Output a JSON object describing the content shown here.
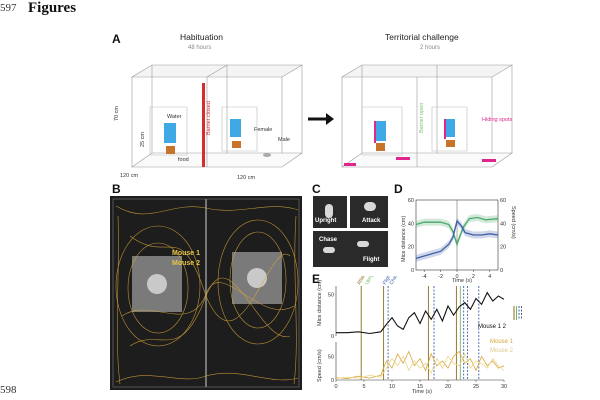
{
  "line_numbers": {
    "top": "597",
    "bottom": "598"
  },
  "heading": "Figures",
  "panel_a": {
    "label": "A",
    "habituation_title": "Habituation",
    "habituation_duration": "48 hours",
    "challenge_title": "Territorial challenge",
    "challenge_duration": "2 hours",
    "labels": {
      "water": "Water",
      "food": "food",
      "barrier_closed": "Barrier closed",
      "barrier_open": "Barrier open",
      "female": "Female",
      "male": "Male",
      "hiding_spots": "Hiding spots",
      "dim_height": "70 cm",
      "dim_depth": "120 cm",
      "dim_width": "120 cm",
      "dim_box": "25 cm"
    },
    "colors": {
      "water": "#3fa9e6",
      "food": "#c8732a",
      "barrier_closed": "#d62e2e",
      "barrier_open": "#7bc46e",
      "hiding": "#e0268c"
    }
  },
  "panel_b": {
    "label": "B",
    "legend": [
      "Mouse 1",
      "Mouse 2"
    ],
    "legend_color": "#e7c548",
    "track_color": "#d9a73a"
  },
  "panel_c": {
    "label": "C",
    "behaviors": [
      "Upright",
      "Attack",
      "Chase",
      "Flight"
    ]
  },
  "panel_d": {
    "label": "D",
    "chart_data": {
      "type": "line",
      "xlabel": "Time (s)",
      "ylabel_left": "Mice distance (cm)",
      "ylabel_right": "Speed (cm/s)",
      "x_ticks": [
        -4,
        -2,
        0,
        2,
        4
      ],
      "yleft_ticks": [
        0,
        20,
        40,
        60
      ],
      "yright_ticks": [
        0,
        20,
        40,
        60
      ],
      "xlim": [
        -5,
        5
      ],
      "ylim": [
        0,
        60
      ],
      "series": [
        {
          "axis": "left",
          "color": "#4aa86b",
          "x": [
            -5,
            -4,
            -3,
            -2,
            -1,
            -0.5,
            0,
            0.3,
            0.8,
            1.5,
            2.5,
            3.5,
            5
          ],
          "values": [
            39,
            41,
            41,
            41,
            39,
            33,
            22,
            28,
            37,
            44,
            45,
            43,
            44
          ]
        },
        {
          "axis": "right",
          "color": "#3f5fa8",
          "x": [
            -5,
            -4,
            -3,
            -2,
            -1,
            -0.5,
            0,
            0.5,
            1,
            2,
            3,
            4,
            5
          ],
          "values": [
            10,
            12,
            14,
            16,
            22,
            28,
            42,
            38,
            32,
            30,
            30,
            31,
            30
          ]
        }
      ]
    }
  },
  "panel_e": {
    "label": "E",
    "events": [
      "Attack",
      "Upright",
      "Flight",
      "Chase"
    ],
    "event_colors": [
      "#8a6d1e",
      "#7bb36b",
      "#3f5fa8",
      "#3f5fa8"
    ],
    "top_legend": "Mouse 1 2",
    "bottom_legend": [
      "Mouse 1",
      "Mouse 2"
    ],
    "chart_data": {
      "type": "line",
      "xlabel": "Time (s)",
      "x_ticks": [
        0,
        5,
        10,
        15,
        20,
        25,
        30
      ],
      "xlim": [
        0,
        30
      ],
      "top": {
        "ylabel": "Mice distance (cm)",
        "yticks": [
          0,
          50
        ],
        "ylim": [
          0,
          60
        ],
        "x": [
          0,
          2,
          4,
          6,
          8,
          9,
          10,
          11,
          12,
          13,
          14,
          15,
          16,
          17,
          18,
          19,
          20,
          21,
          22,
          23,
          24,
          25,
          26,
          27,
          28,
          29,
          30
        ],
        "values": [
          4,
          4,
          5,
          3,
          5,
          14,
          22,
          12,
          8,
          22,
          28,
          15,
          30,
          20,
          32,
          18,
          36,
          25,
          35,
          40,
          32,
          45,
          38,
          52,
          42,
          48,
          44
        ]
      },
      "bottom": {
        "ylabel": "Speed (cm/s)",
        "yticks": [
          0,
          50
        ],
        "ylim": [
          0,
          80
        ],
        "series": [
          {
            "name": "Mouse 1",
            "color": "#d9a73a",
            "x": [
              0,
              2,
              4,
              6,
              8,
              9,
              10,
              11,
              12,
              13,
              14,
              15,
              16,
              17,
              18,
              19,
              20,
              21,
              22,
              23,
              24,
              25,
              26,
              27,
              28,
              29,
              30
            ],
            "values": [
              5,
              3,
              8,
              4,
              10,
              40,
              25,
              55,
              35,
              60,
              30,
              45,
              20,
              55,
              30,
              40,
              25,
              50,
              60,
              35,
              45,
              20,
              50,
              30,
              40,
              25,
              30
            ]
          },
          {
            "name": "Mouse 2",
            "color": "#ecd68a",
            "x": [
              0,
              2,
              4,
              6,
              8,
              9,
              10,
              11,
              12,
              13,
              14,
              15,
              16,
              17,
              18,
              19,
              20,
              21,
              22,
              23,
              24,
              25,
              26,
              27,
              28,
              29,
              30
            ],
            "values": [
              3,
              6,
              4,
              10,
              6,
              25,
              45,
              30,
              50,
              20,
              40,
              25,
              35,
              15,
              45,
              25,
              50,
              35,
              30,
              55,
              25,
              40,
              35,
              25,
              45,
              30,
              20
            ]
          }
        ]
      },
      "event_times": [
        {
          "t": 4.5,
          "event": 0
        },
        {
          "t": 8.5,
          "event": 0
        },
        {
          "t": 9.3,
          "event": 2
        },
        {
          "t": 16.5,
          "event": 0
        },
        {
          "t": 17.5,
          "event": 3
        },
        {
          "t": 21.5,
          "event": 0
        },
        {
          "t": 22.2,
          "event": 1
        },
        {
          "t": 22.8,
          "event": 3
        },
        {
          "t": 23.5,
          "event": 2
        },
        {
          "t": 25.5,
          "event": 3
        }
      ]
    }
  }
}
